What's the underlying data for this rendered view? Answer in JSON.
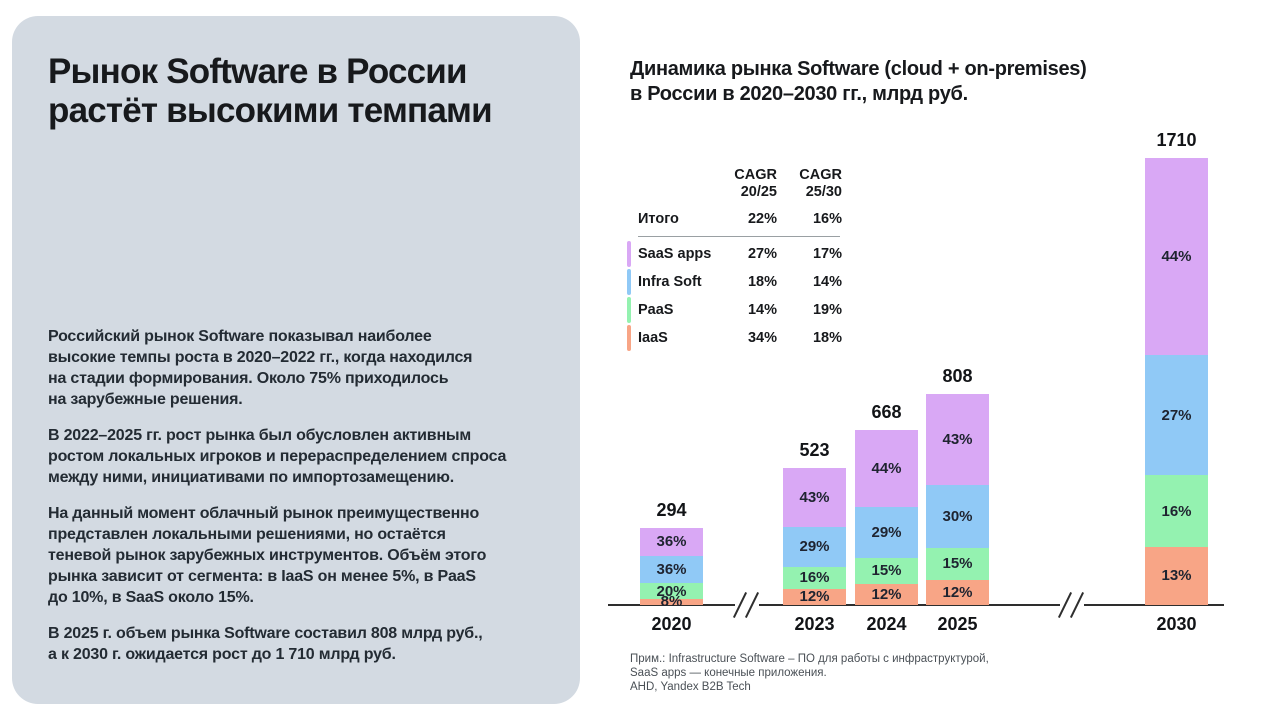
{
  "panel": {
    "title": "Рынок Software в России\nрастёт высокими темпами",
    "paragraphs": [
      "Российский рынок Software показывал наиболее\nвысокие темпы роста в 2020–2022 гг., когда находился\nна стадии формирования. Около 75% приходилось\nна зарубежные решения.",
      "В 2022–2025 гг. рост рынка был обусловлен активным\nростом локальных игроков и перераспределением спроса\nмежду ними, инициативами по импортозамещению.",
      "На данный момент облачный рынок преимущественно\nпредставлен локальными решениями, но остаётся\nтеневой рынок зарубежных инструментов. Объём этого\nрынка зависит от сегмента: в IaaS он менее 5%, в PaaS\nдо 10%, в SaaS около 15%.",
      "В 2025 г. объем рынка Software составил 808 млрд руб.,\nа к 2030 г. ожидается рост до 1 710 млрд руб."
    ]
  },
  "chart": {
    "title": "Динамика рынка Software (cloud + on-premises)\nв России в 2020–2030 гг., млрд руб.",
    "footnote": "Прим.: Infrastructure Software – ПО для работы с инфраструктурой,\nSaaS apps — конечные приложения.\nAHD, Yandex B2B Tech"
  },
  "table": {
    "col_headers": [
      "CAGR\n20/25",
      "CAGR\n25/30"
    ],
    "rows": [
      {
        "label": "Итого",
        "cagr_20_25": "22%",
        "cagr_25_30": "16%",
        "color": null
      },
      {
        "label": "SaaS apps",
        "cagr_20_25": "27%",
        "cagr_25_30": "17%",
        "color": "#d9a8f5"
      },
      {
        "label": "Infra Soft",
        "cagr_20_25": "18%",
        "cagr_25_30": "14%",
        "color": "#90c9f6"
      },
      {
        "label": "PaaS",
        "cagr_20_25": "14%",
        "cagr_25_30": "19%",
        "color": "#94f2b0"
      },
      {
        "label": "IaaS",
        "cagr_20_25": "34%",
        "cagr_25_30": "18%",
        "color": "#f8a586"
      }
    ]
  },
  "chart_data": {
    "type": "bar",
    "stacked": true,
    "title": "Динамика рынка Software (cloud + on-premises) в России в 2020–2030 гг., млрд руб.",
    "unit": "млрд руб.",
    "categories": [
      "2020",
      "2023",
      "2024",
      "2025",
      "2030"
    ],
    "totals": [
      294,
      523,
      668,
      808,
      1710
    ],
    "series": [
      {
        "name": "SaaS apps",
        "color": "#d9a8f5",
        "pct": [
          36,
          43,
          44,
          43,
          44
        ]
      },
      {
        "name": "Infra Soft",
        "color": "#90c9f6",
        "pct": [
          36,
          29,
          29,
          30,
          27
        ]
      },
      {
        "name": "PaaS",
        "color": "#94f2b0",
        "pct": [
          20,
          16,
          15,
          15,
          16
        ]
      },
      {
        "name": "IaaS",
        "color": "#f8a586",
        "pct": [
          8,
          12,
          12,
          12,
          13
        ]
      }
    ],
    "axis_breaks_after": [
      "2020",
      "2025"
    ],
    "legend_position": "table-left-top",
    "grid": false
  }
}
